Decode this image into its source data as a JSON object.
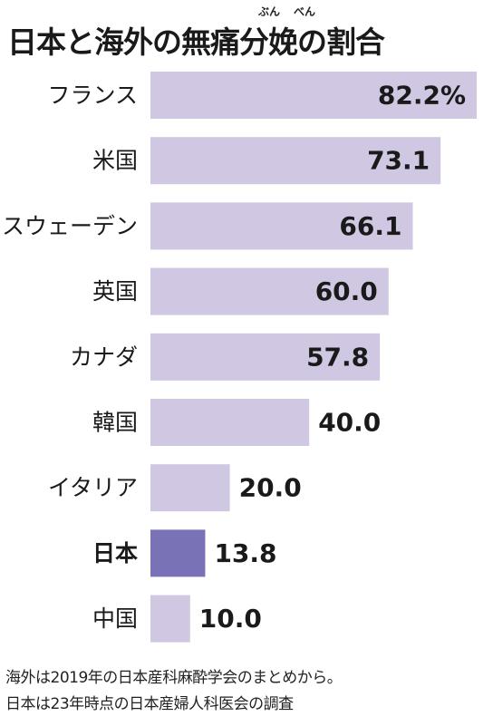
{
  "header": {
    "title": "日本と海外の無痛分娩の割合",
    "ruby_bun": "ぶん",
    "ruby_ben": "べん"
  },
  "chart_data": {
    "type": "bar",
    "orientation": "horizontal",
    "title": "日本と海外の無痛分娩の割合",
    "categories": [
      "フランス",
      "米国",
      "スウェーデン",
      "英国",
      "カナダ",
      "韓国",
      "イタリア",
      "日本",
      "中国"
    ],
    "values": [
      82.2,
      73.1,
      66.1,
      60.0,
      57.8,
      40.0,
      20.0,
      13.8,
      10.0
    ],
    "value_labels": [
      "82.2%",
      "73.1",
      "66.1",
      "60.0",
      "57.8",
      "40.0",
      "20.0",
      "13.8",
      "10.0"
    ],
    "highlight_category": "日本",
    "bar_color": "#d0c8e2",
    "highlight_color": "#7a72b6",
    "grid": false,
    "legend": "none"
  },
  "notes": [
    "海外は2019年の日本産科麻酔学会のまとめから。",
    "日本は23年時点の日本産婦人科医会の調査"
  ]
}
